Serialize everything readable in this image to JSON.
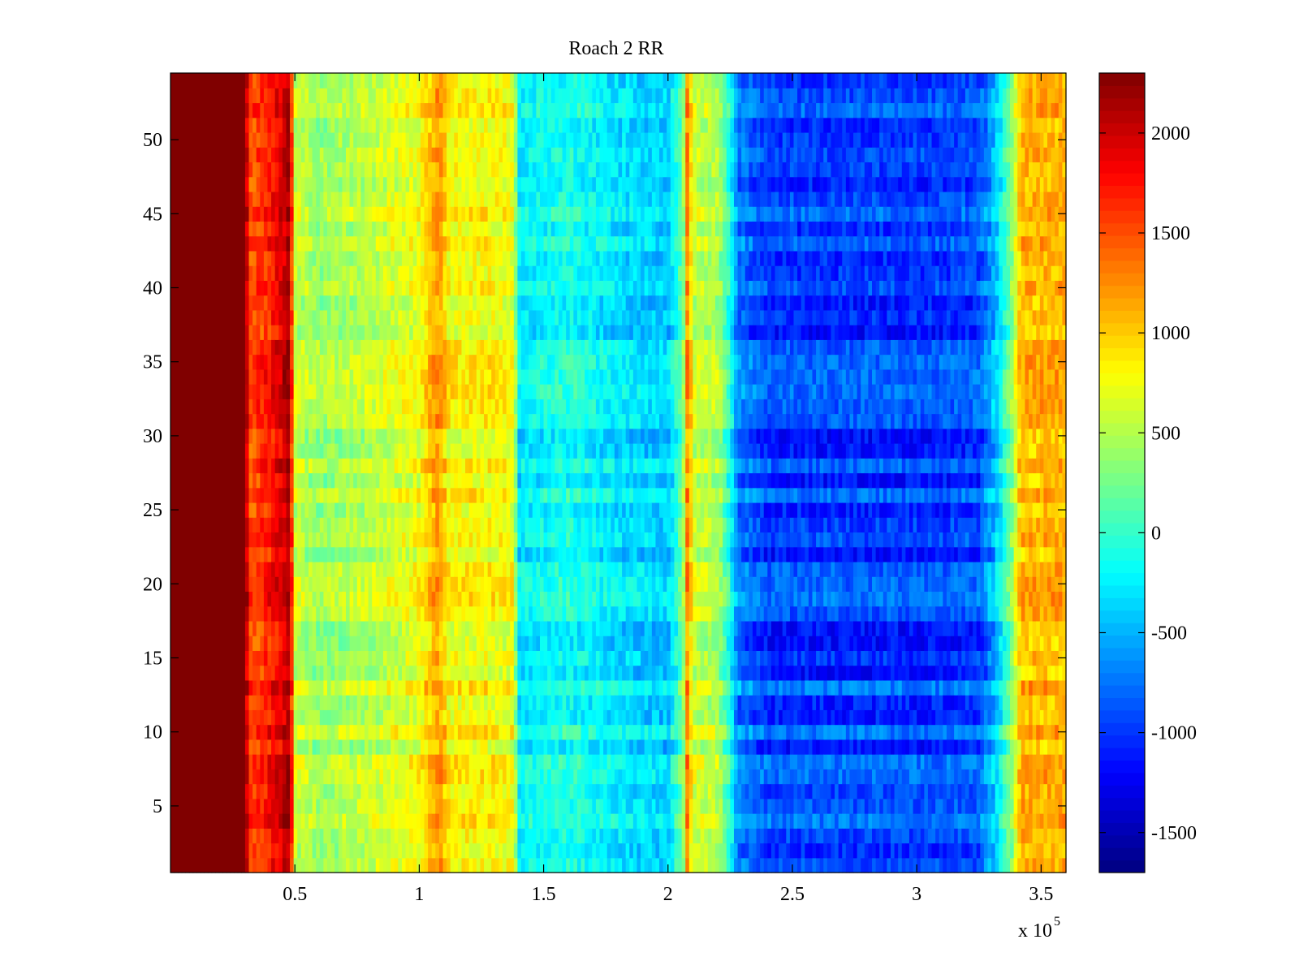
{
  "chart_data": {
    "type": "heatmap",
    "title": "Roach 2 RR",
    "xlabel": "",
    "ylabel": "",
    "x_exponent_label": "x 10",
    "x_exponent_power": "5",
    "xlim": [
      0,
      3.6
    ],
    "ylim": [
      0.5,
      54.5
    ],
    "x_ticks": [
      0.5,
      1,
      1.5,
      2,
      2.5,
      3,
      3.5
    ],
    "x_tick_labels": [
      "0.5",
      "1",
      "1.5",
      "2",
      "2.5",
      "3",
      "3.5"
    ],
    "y_ticks": [
      5,
      10,
      15,
      20,
      25,
      30,
      35,
      40,
      45,
      50
    ],
    "y_tick_labels": [
      "5",
      "10",
      "15",
      "20",
      "25",
      "30",
      "35",
      "40",
      "45",
      "50"
    ],
    "rows": 54,
    "colormap": "jet",
    "color_range": [
      -1700,
      2300
    ],
    "colorbar_ticks": [
      2000,
      1500,
      1000,
      500,
      0,
      -500,
      -1000,
      -1500
    ],
    "colorbar_tick_labels": [
      "2000",
      "1500",
      "1000",
      "500",
      "0",
      "-500",
      "-1000",
      "-1500"
    ],
    "column_profile": [
      {
        "x": 0.0,
        "value": 2300
      },
      {
        "x": 0.3,
        "value": 2300
      },
      {
        "x": 0.32,
        "value": 1500
      },
      {
        "x": 0.38,
        "value": 1650
      },
      {
        "x": 0.44,
        "value": 1900
      },
      {
        "x": 0.48,
        "value": 2200
      },
      {
        "x": 0.5,
        "value": 600
      },
      {
        "x": 0.6,
        "value": 400
      },
      {
        "x": 0.8,
        "value": 550
      },
      {
        "x": 1.0,
        "value": 750
      },
      {
        "x": 1.08,
        "value": 1250
      },
      {
        "x": 1.12,
        "value": 800
      },
      {
        "x": 1.3,
        "value": 800
      },
      {
        "x": 1.38,
        "value": 750
      },
      {
        "x": 1.4,
        "value": -250
      },
      {
        "x": 1.6,
        "value": -100
      },
      {
        "x": 1.8,
        "value": -300
      },
      {
        "x": 2.0,
        "value": -400
      },
      {
        "x": 2.06,
        "value": 250
      },
      {
        "x": 2.08,
        "value": 1400
      },
      {
        "x": 2.1,
        "value": 600
      },
      {
        "x": 2.2,
        "value": 500
      },
      {
        "x": 2.25,
        "value": -100
      },
      {
        "x": 2.28,
        "value": -700
      },
      {
        "x": 2.4,
        "value": -950
      },
      {
        "x": 2.8,
        "value": -950
      },
      {
        "x": 3.1,
        "value": -950
      },
      {
        "x": 3.25,
        "value": -900
      },
      {
        "x": 3.32,
        "value": -400
      },
      {
        "x": 3.38,
        "value": 300
      },
      {
        "x": 3.42,
        "value": 1100
      },
      {
        "x": 3.6,
        "value": 1100
      }
    ]
  }
}
